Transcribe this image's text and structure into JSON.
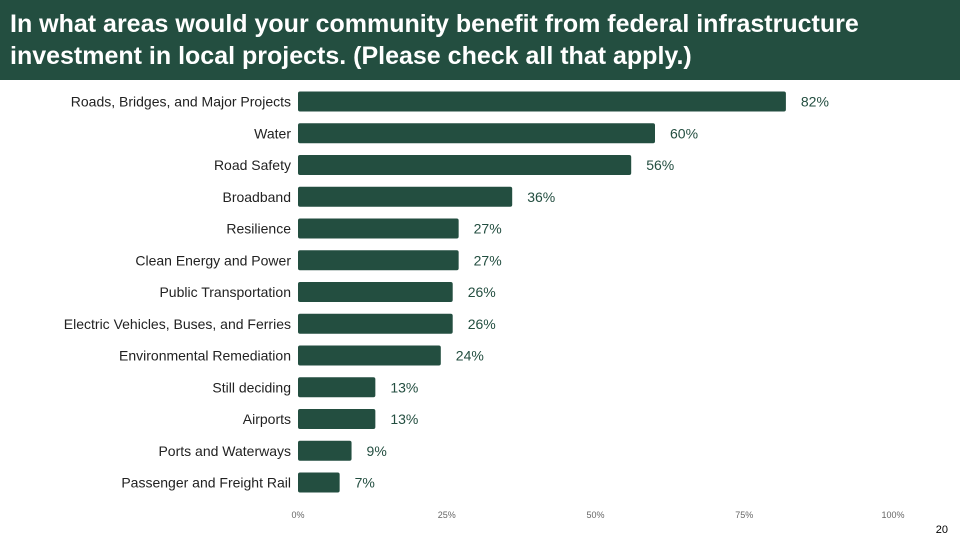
{
  "header": {
    "title": "In what areas would your community benefit from federal infrastructure investment in local projects. (Please check all that apply.)"
  },
  "page_number": "20",
  "colors": {
    "header_bg": "#234e40",
    "bar": "#234e40",
    "value_label": "#234e40",
    "axis_tick": "#666666",
    "category_label": "#222222"
  },
  "chart_data": {
    "type": "bar",
    "orientation": "horizontal",
    "categories": [
      "Roads, Bridges, and Major Projects",
      "Water",
      "Road Safety",
      "Broadband",
      "Resilience",
      "Clean Energy and Power",
      "Public Transportation",
      "Electric Vehicles, Buses, and Ferries",
      "Environmental Remediation",
      "Still deciding",
      "Airports",
      "Ports and Waterways",
      "Passenger and Freight Rail"
    ],
    "values": [
      82,
      60,
      56,
      36,
      27,
      27,
      26,
      26,
      24,
      13,
      13,
      9,
      7
    ],
    "value_labels": [
      "82%",
      "60%",
      "56%",
      "36%",
      "27%",
      "27%",
      "26%",
      "26%",
      "24%",
      "13%",
      "13%",
      "9%",
      "7%"
    ],
    "xlim": [
      0,
      100
    ],
    "xticks": [
      0,
      25,
      50,
      75,
      100
    ],
    "xtick_labels": [
      "0%",
      "25%",
      "50%",
      "75%",
      "100%"
    ],
    "grid": false,
    "legend": "none"
  }
}
